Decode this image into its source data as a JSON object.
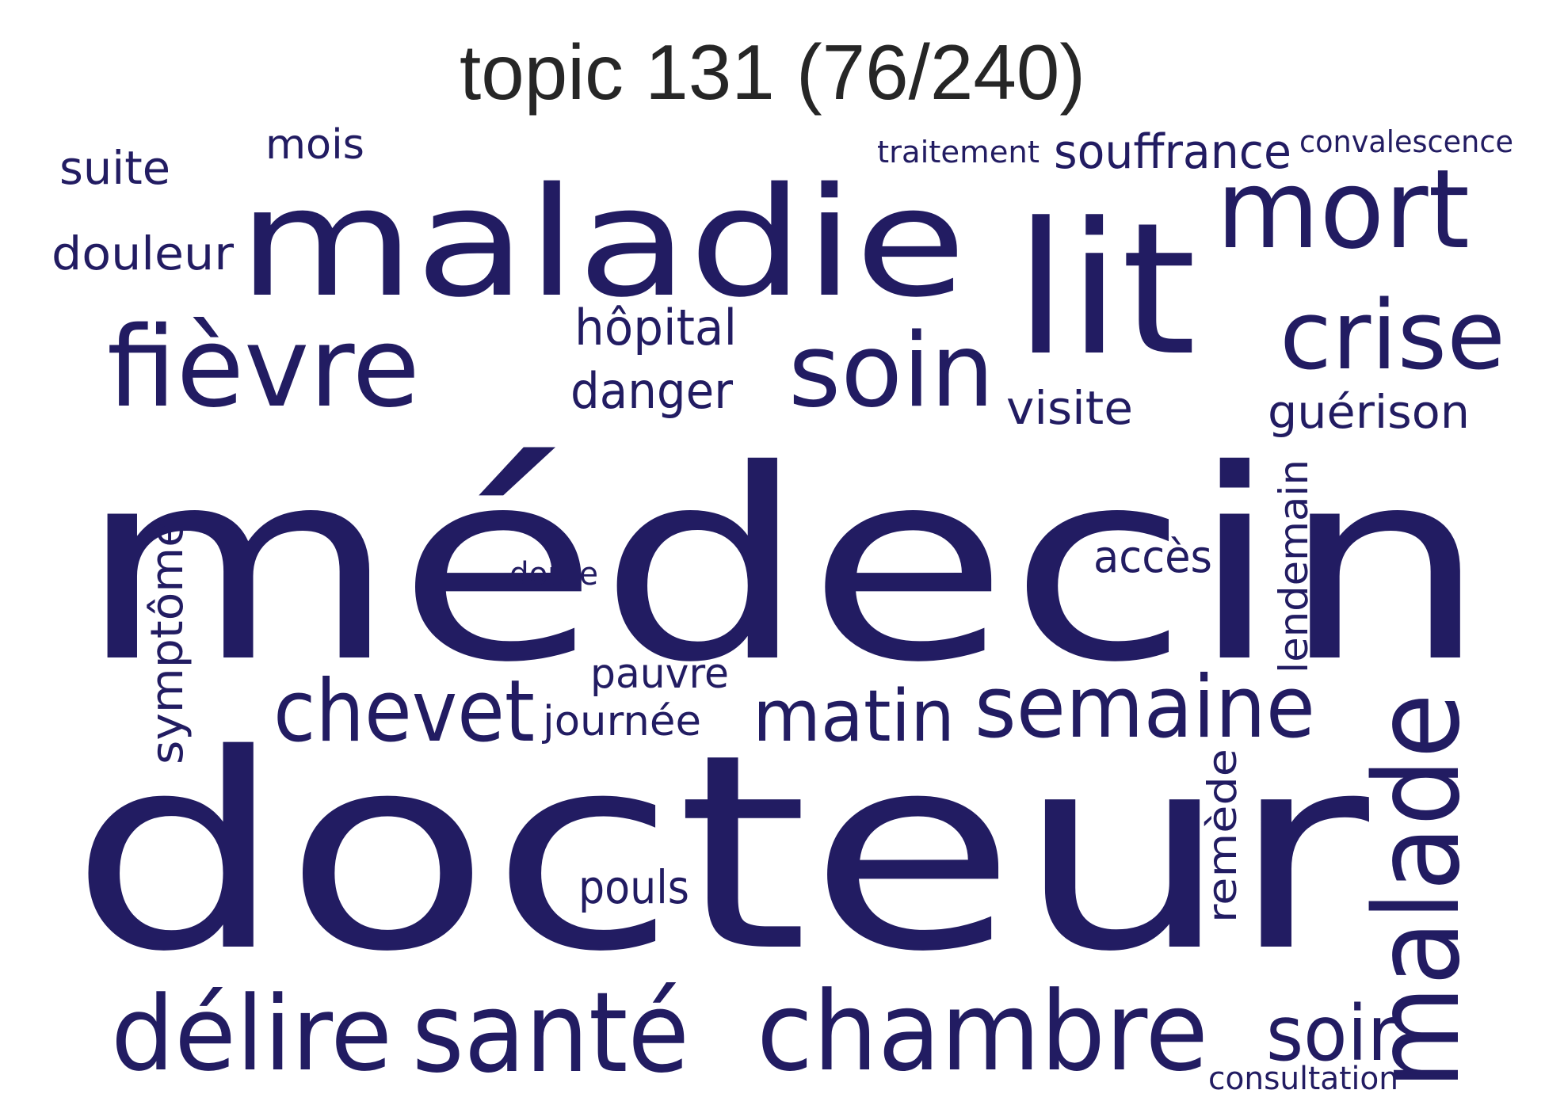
{
  "title": "topic 131 (76/240)",
  "colors": {
    "word": "#221c62",
    "title": "#262626",
    "background": "#ffffff"
  },
  "words": [
    "médecin",
    "docteur",
    "maladie",
    "lit",
    "malade",
    "mort",
    "soin",
    "fièvre",
    "crise",
    "chambre",
    "santé",
    "délire",
    "semaine",
    "chevet",
    "matin",
    "soir",
    "souffrance",
    "hôpital",
    "danger",
    "visite",
    "guérison",
    "douleur",
    "suite",
    "mois",
    "traitement",
    "convalescence",
    "symptôme",
    "lendemain",
    "accès",
    "doute",
    "pauvre",
    "journée",
    "remède",
    "pouls",
    "consultation"
  ]
}
